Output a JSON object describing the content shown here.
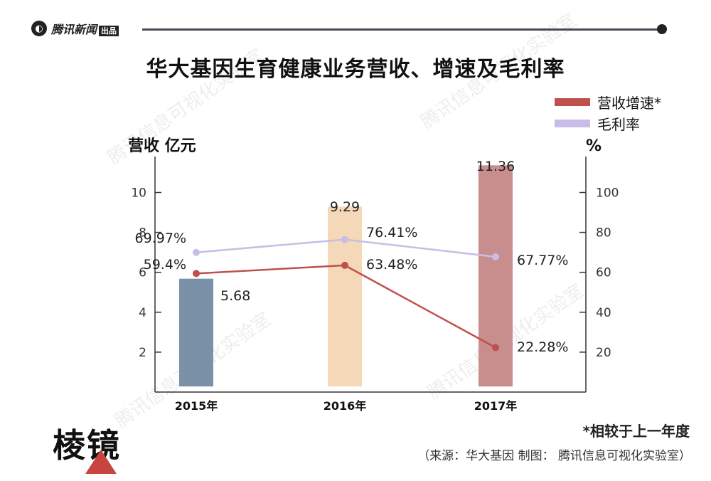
{
  "header": {
    "brand_text": "腾讯新闻",
    "brand_tag": "出品"
  },
  "footer": {
    "note": "*相较于上一年度",
    "source": "（来源：华大基因   制图：  腾讯信息可视化实验室）",
    "logo": "棱镜"
  },
  "watermark": "腾讯信息可视化实验室",
  "colors": {
    "bars": [
      "#7b91a8",
      "#f4d8b8",
      "#c88e8e"
    ],
    "growth_line": "#c0504d",
    "margin_line": "#c7bde6"
  },
  "chart_data": {
    "type": "bar",
    "title": "华大基因生育健康业务营收、增速及毛利率",
    "ylabel": "营收 亿元",
    "y2label": "%",
    "ylim": [
      0,
      11.8
    ],
    "y2lim": [
      0,
      118
    ],
    "yticks": [
      2,
      4,
      6,
      8,
      10
    ],
    "y2ticks": [
      20,
      40,
      60,
      80,
      100
    ],
    "categories": [
      "2015年",
      "2016年",
      "2017年"
    ],
    "bars": {
      "values": [
        5.68,
        9.29,
        11.36
      ],
      "labels": [
        "5.68",
        "9.29",
        "11.36"
      ]
    },
    "series": [
      {
        "name": "营收增速*",
        "axis": "right",
        "values": [
          59.4,
          63.48,
          22.28
        ],
        "labels": [
          "59.4%",
          "63.48%",
          "22.28%"
        ]
      },
      {
        "name": "毛利率",
        "axis": "right",
        "values": [
          69.97,
          76.41,
          67.77
        ],
        "labels": [
          "69.97%",
          "76.41%",
          "67.77%"
        ]
      }
    ],
    "legend": "top-right"
  }
}
